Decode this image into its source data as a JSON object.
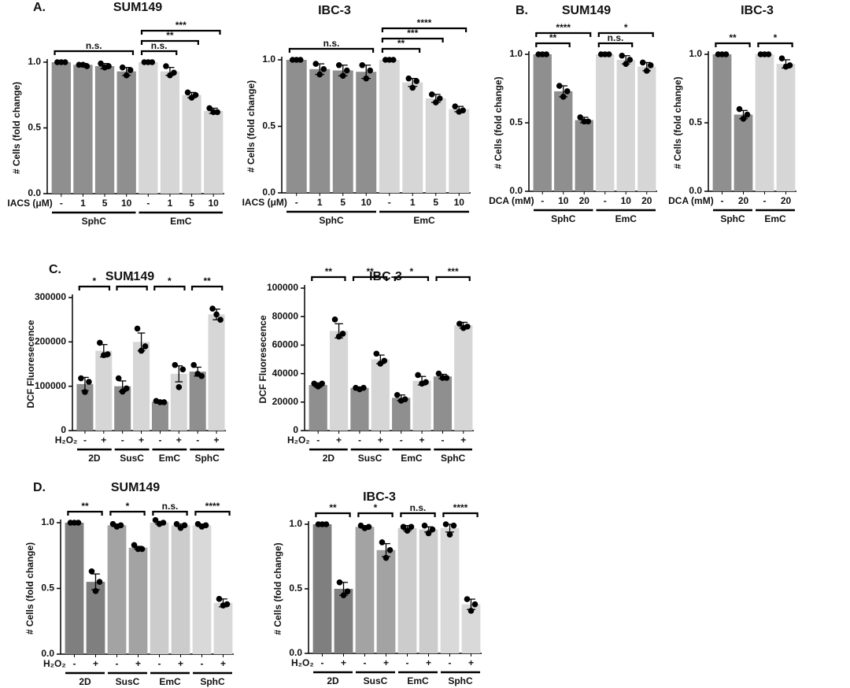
{
  "chart_data": [
    {
      "type": "bar",
      "panel": "A.",
      "title": "SUM149",
      "ylabel": "# Cells (fold change)",
      "xlabel": "IACS (μM)",
      "categories": [
        "-",
        "1",
        "5",
        "10",
        "-",
        "1",
        "5",
        "10"
      ],
      "values": [
        1.0,
        0.98,
        0.97,
        0.93,
        1.0,
        0.93,
        0.75,
        0.63
      ],
      "errors": [
        0,
        0.01,
        0.02,
        0.03,
        0,
        0.03,
        0.02,
        0.02
      ],
      "points": [
        [
          1,
          1,
          1
        ],
        [
          0.98,
          0.98,
          0.97
        ],
        [
          0.99,
          0.96,
          0.97
        ],
        [
          0.96,
          0.9,
          0.94
        ],
        [
          1,
          1,
          1
        ],
        [
          0.97,
          0.9,
          0.92
        ],
        [
          0.77,
          0.73,
          0.75
        ],
        [
          0.65,
          0.62,
          0.62
        ]
      ],
      "colors": [
        "#8f8f8f",
        "#8f8f8f",
        "#8f8f8f",
        "#8f8f8f",
        "#d6d6d6",
        "#d6d6d6",
        "#d6d6d6",
        "#d6d6d6"
      ],
      "groups": [
        {
          "label": "SphC",
          "from": 0,
          "to": 3
        },
        {
          "label": "EmC",
          "from": 4,
          "to": 7
        }
      ],
      "brackets": [
        {
          "label": "n.s.",
          "from": 0,
          "to": 3
        },
        {
          "label": "n.s.",
          "from": 4,
          "to": 5
        },
        {
          "label": "**",
          "from": 4,
          "to": 6
        },
        {
          "label": "***",
          "from": 4,
          "to": 7
        }
      ],
      "ylim": [
        0,
        1.0
      ],
      "yticks": [
        {
          "value": 0,
          "label": "0.0"
        },
        {
          "value": 0.5,
          "label": "0.5"
        },
        {
          "value": 1.0,
          "label": "1.0"
        }
      ]
    },
    {
      "type": "bar",
      "title": "IBC-3",
      "ylabel": "# Cells (fold change)",
      "xlabel": "IACS (μM)",
      "categories": [
        "-",
        "1",
        "5",
        "10",
        "-",
        "1",
        "5",
        "10"
      ],
      "values": [
        1.0,
        0.93,
        0.92,
        0.91,
        1.0,
        0.83,
        0.71,
        0.63
      ],
      "errors": [
        0,
        0.04,
        0.04,
        0.05,
        0,
        0.03,
        0.03,
        0.02
      ],
      "points": [
        [
          1,
          1,
          1
        ],
        [
          0.97,
          0.89,
          0.93
        ],
        [
          0.96,
          0.88,
          0.92
        ],
        [
          0.96,
          0.86,
          0.92
        ],
        [
          1,
          1,
          1
        ],
        [
          0.86,
          0.79,
          0.84
        ],
        [
          0.74,
          0.68,
          0.71
        ],
        [
          0.65,
          0.61,
          0.62
        ]
      ],
      "colors": [
        "#8f8f8f",
        "#8f8f8f",
        "#8f8f8f",
        "#8f8f8f",
        "#d6d6d6",
        "#d6d6d6",
        "#d6d6d6",
        "#d6d6d6"
      ],
      "groups": [
        {
          "label": "SphC",
          "from": 0,
          "to": 3
        },
        {
          "label": "EmC",
          "from": 4,
          "to": 7
        }
      ],
      "brackets": [
        {
          "label": "n.s.",
          "from": 0,
          "to": 3
        },
        {
          "label": "**",
          "from": 4,
          "to": 5
        },
        {
          "label": "***",
          "from": 4,
          "to": 6
        },
        {
          "label": "****",
          "from": 4,
          "to": 7
        }
      ],
      "ylim": [
        0,
        1.0
      ],
      "yticks": [
        {
          "value": 0,
          "label": "0.0"
        },
        {
          "value": 0.5,
          "label": "0.5"
        },
        {
          "value": 1.0,
          "label": "1.0"
        }
      ]
    },
    {
      "type": "bar",
      "panel": "B.",
      "title": "SUM149",
      "ylabel": "# Cells (fold change)",
      "xlabel": "DCA (mM)",
      "categories": [
        "-",
        "10",
        "20",
        "-",
        "10",
        "20"
      ],
      "values": [
        1.0,
        0.73,
        0.52,
        1.0,
        0.96,
        0.91
      ],
      "errors": [
        0,
        0.04,
        0.02,
        0,
        0.03,
        0.03
      ],
      "points": [
        [
          1,
          1,
          1
        ],
        [
          0.77,
          0.69,
          0.73
        ],
        [
          0.54,
          0.51,
          0.51
        ],
        [
          1,
          1,
          1
        ],
        [
          0.99,
          0.93,
          0.96
        ],
        [
          0.94,
          0.88,
          0.92
        ]
      ],
      "colors": [
        "#8f8f8f",
        "#8f8f8f",
        "#8f8f8f",
        "#d6d6d6",
        "#d6d6d6",
        "#d6d6d6"
      ],
      "groups": [
        {
          "label": "SphC",
          "from": 0,
          "to": 2
        },
        {
          "label": "EmC",
          "from": 3,
          "to": 5
        }
      ],
      "brackets": [
        {
          "label": "**",
          "from": 0,
          "to": 1
        },
        {
          "label": "****",
          "from": 0,
          "to": 2
        },
        {
          "label": "n.s.",
          "from": 3,
          "to": 4
        },
        {
          "label": "*",
          "from": 3,
          "to": 5
        }
      ],
      "ylim": [
        0,
        1.0
      ],
      "yticks": [
        {
          "value": 0,
          "label": "0.0"
        },
        {
          "value": 0.5,
          "label": "0.5"
        },
        {
          "value": 1.0,
          "label": "1.0"
        }
      ]
    },
    {
      "type": "bar",
      "title": "IBC-3",
      "ylabel": "# Cells (fold change)",
      "xlabel": "DCA (mM)",
      "categories": [
        "-",
        "20",
        "-",
        "20"
      ],
      "values": [
        1.0,
        0.56,
        1.0,
        0.93
      ],
      "errors": [
        0,
        0.03,
        0,
        0.03
      ],
      "points": [
        [
          1,
          1,
          1
        ],
        [
          0.6,
          0.53,
          0.56
        ],
        [
          1,
          1,
          1
        ],
        [
          0.97,
          0.91,
          0.92
        ]
      ],
      "colors": [
        "#8f8f8f",
        "#8f8f8f",
        "#d6d6d6",
        "#d6d6d6"
      ],
      "groups": [
        {
          "label": "SphC",
          "from": 0,
          "to": 1
        },
        {
          "label": "EmC",
          "from": 2,
          "to": 3
        }
      ],
      "brackets": [
        {
          "label": "**",
          "from": 0,
          "to": 1
        },
        {
          "label": "*",
          "from": 2,
          "to": 3
        }
      ],
      "ylim": [
        0,
        1.0
      ],
      "yticks": [
        {
          "value": 0,
          "label": "0.0"
        },
        {
          "value": 0.5,
          "label": "0.5"
        },
        {
          "value": 1.0,
          "label": "1.0"
        }
      ]
    },
    {
      "type": "bar",
      "panel": "C.",
      "title": "SUM149",
      "ylabel": "DCF Fluoresecence",
      "xlabel": "H₂O₂",
      "categories": [
        "-",
        "+",
        "-",
        "+",
        "-",
        "+",
        "-",
        "+"
      ],
      "values": [
        105000,
        180000,
        100000,
        200000,
        65000,
        128000,
        133000,
        262000
      ],
      "errors": [
        15000,
        14000,
        12000,
        20000,
        2000,
        18000,
        10000,
        12000
      ],
      "points": [
        [
          118000,
          87000,
          110000
        ],
        [
          198000,
          170000,
          172000
        ],
        [
          118000,
          88000,
          95000
        ],
        [
          230000,
          180000,
          190000
        ],
        [
          67000,
          64000,
          64000
        ],
        [
          148000,
          98000,
          138000
        ],
        [
          148000,
          128000,
          123000
        ],
        [
          275000,
          262000,
          250000
        ]
      ],
      "colors": [
        "#8f8f8f",
        "#d6d6d6",
        "#8f8f8f",
        "#d6d6d6",
        "#8f8f8f",
        "#d6d6d6",
        "#8f8f8f",
        "#d6d6d6"
      ],
      "groups": [
        {
          "label": "2D",
          "from": 0,
          "to": 1
        },
        {
          "label": "SusC",
          "from": 2,
          "to": 3
        },
        {
          "label": "EmC",
          "from": 4,
          "to": 5
        },
        {
          "label": "SphC",
          "from": 6,
          "to": 7
        }
      ],
      "brackets": [
        {
          "label": "*",
          "from": 0,
          "to": 1
        },
        {
          "label": "*",
          "from": 2,
          "to": 3
        },
        {
          "label": "*",
          "from": 4,
          "to": 5
        },
        {
          "label": "**",
          "from": 6,
          "to": 7
        }
      ],
      "ylim": [
        0,
        300000
      ],
      "yticks": [
        0,
        100000,
        200000,
        300000
      ]
    },
    {
      "type": "bar",
      "title": "IBC-3",
      "ylabel": "DCF Fluoresecence",
      "xlabel": "H₂O₂",
      "categories": [
        "-",
        "+",
        "-",
        "+",
        "-",
        "+",
        "-",
        "+"
      ],
      "values": [
        32000,
        70000,
        30000,
        50000,
        23000,
        35000,
        38000,
        74000
      ],
      "errors": [
        1500,
        5000,
        500,
        3000,
        2000,
        3000,
        1500,
        2000
      ],
      "points": [
        [
          33000,
          31000,
          33000
        ],
        [
          78000,
          66000,
          68000
        ],
        [
          30000,
          29000,
          30000
        ],
        [
          54000,
          47000,
          49000
        ],
        [
          25000,
          21000,
          22000
        ],
        [
          39000,
          33000,
          34000
        ],
        [
          40000,
          37000,
          37000
        ],
        [
          75000,
          72000,
          73000
        ]
      ],
      "colors": [
        "#8f8f8f",
        "#d6d6d6",
        "#8f8f8f",
        "#d6d6d6",
        "#8f8f8f",
        "#d6d6d6",
        "#8f8f8f",
        "#d6d6d6"
      ],
      "groups": [
        {
          "label": "2D",
          "from": 0,
          "to": 1
        },
        {
          "label": "SusC",
          "from": 2,
          "to": 3
        },
        {
          "label": "EmC",
          "from": 4,
          "to": 5
        },
        {
          "label": "SphC",
          "from": 6,
          "to": 7
        }
      ],
      "brackets": [
        {
          "label": "**",
          "from": 0,
          "to": 1
        },
        {
          "label": "**",
          "from": 2,
          "to": 3
        },
        {
          "label": "*",
          "from": 4,
          "to": 5
        },
        {
          "label": "***",
          "from": 6,
          "to": 7
        }
      ],
      "ylim": [
        0,
        100000
      ],
      "yticks": [
        0,
        20000,
        40000,
        60000,
        80000,
        100000
      ]
    },
    {
      "type": "bar",
      "panel": "D.",
      "title": "SUM149",
      "ylabel": "# Cells (fold change)",
      "xlabel": "H₂O₂",
      "categories": [
        "-",
        "+",
        "-",
        "+",
        "-",
        "+",
        "-",
        "+"
      ],
      "values": [
        1.0,
        0.55,
        0.98,
        0.81,
        1.0,
        0.98,
        0.98,
        0.39
      ],
      "errors": [
        0,
        0.06,
        0.01,
        0.01,
        0.01,
        0.01,
        0.01,
        0.03
      ],
      "points": [
        [
          1,
          1,
          1
        ],
        [
          0.63,
          0.48,
          0.55
        ],
        [
          0.99,
          0.97,
          0.98
        ],
        [
          0.83,
          0.8,
          0.8
        ],
        [
          1.02,
          0.99,
          1.0
        ],
        [
          0.99,
          0.96,
          0.98
        ],
        [
          0.99,
          0.97,
          0.98
        ],
        [
          0.42,
          0.37,
          0.38
        ]
      ],
      "colors": [
        "#7f7f7f",
        "#7f7f7f",
        "#a3a3a3",
        "#a3a3a3",
        "#cccccc",
        "#cccccc",
        "#d9d9d9",
        "#d9d9d9"
      ],
      "groups": [
        {
          "label": "2D",
          "from": 0,
          "to": 1
        },
        {
          "label": "SusC",
          "from": 2,
          "to": 3
        },
        {
          "label": "EmC",
          "from": 4,
          "to": 5
        },
        {
          "label": "SphC",
          "from": 6,
          "to": 7
        }
      ],
      "brackets": [
        {
          "label": "**",
          "from": 0,
          "to": 1
        },
        {
          "label": "*",
          "from": 2,
          "to": 3
        },
        {
          "label": "n.s.",
          "from": 4,
          "to": 5
        },
        {
          "label": "****",
          "from": 6,
          "to": 7
        }
      ],
      "ylim": [
        0,
        1.0
      ],
      "yticks": [
        {
          "value": 0,
          "label": "0.0"
        },
        {
          "value": 0.5,
          "label": "0.5"
        },
        {
          "value": 1.0,
          "label": "1.0"
        }
      ]
    },
    {
      "type": "bar",
      "title": "IBC-3",
      "ylabel": "# Cells (fold change)",
      "xlabel": "H₂O₂",
      "categories": [
        "-",
        "+",
        "-",
        "+",
        "-",
        "+",
        "-",
        "+"
      ],
      "values": [
        1.0,
        0.5,
        0.98,
        0.8,
        0.97,
        0.96,
        0.97,
        0.38
      ],
      "errors": [
        0,
        0.05,
        0.01,
        0.05,
        0.02,
        0.02,
        0.03,
        0.04
      ],
      "points": [
        [
          1,
          1,
          1
        ],
        [
          0.55,
          0.45,
          0.48
        ],
        [
          0.99,
          0.97,
          0.98
        ],
        [
          0.86,
          0.74,
          0.8
        ],
        [
          0.98,
          0.95,
          0.98
        ],
        [
          0.99,
          0.93,
          0.96
        ],
        [
          1.0,
          0.92,
          0.99
        ],
        [
          0.42,
          0.33,
          0.38
        ]
      ],
      "colors": [
        "#7f7f7f",
        "#7f7f7f",
        "#a3a3a3",
        "#a3a3a3",
        "#cccccc",
        "#cccccc",
        "#d9d9d9",
        "#d9d9d9"
      ],
      "groups": [
        {
          "label": "2D",
          "from": 0,
          "to": 1
        },
        {
          "label": "SusC",
          "from": 2,
          "to": 3
        },
        {
          "label": "EmC",
          "from": 4,
          "to": 5
        },
        {
          "label": "SphC",
          "from": 6,
          "to": 7
        }
      ],
      "brackets": [
        {
          "label": "**",
          "from": 0,
          "to": 1
        },
        {
          "label": "*",
          "from": 2,
          "to": 3
        },
        {
          "label": "n.s.",
          "from": 4,
          "to": 5
        },
        {
          "label": "****",
          "from": 6,
          "to": 7
        }
      ],
      "ylim": [
        0,
        1.0
      ],
      "yticks": [
        {
          "value": 0,
          "label": "0.0"
        },
        {
          "value": 0.5,
          "label": "0.5"
        },
        {
          "value": 1.0,
          "label": "1.0"
        }
      ]
    }
  ]
}
